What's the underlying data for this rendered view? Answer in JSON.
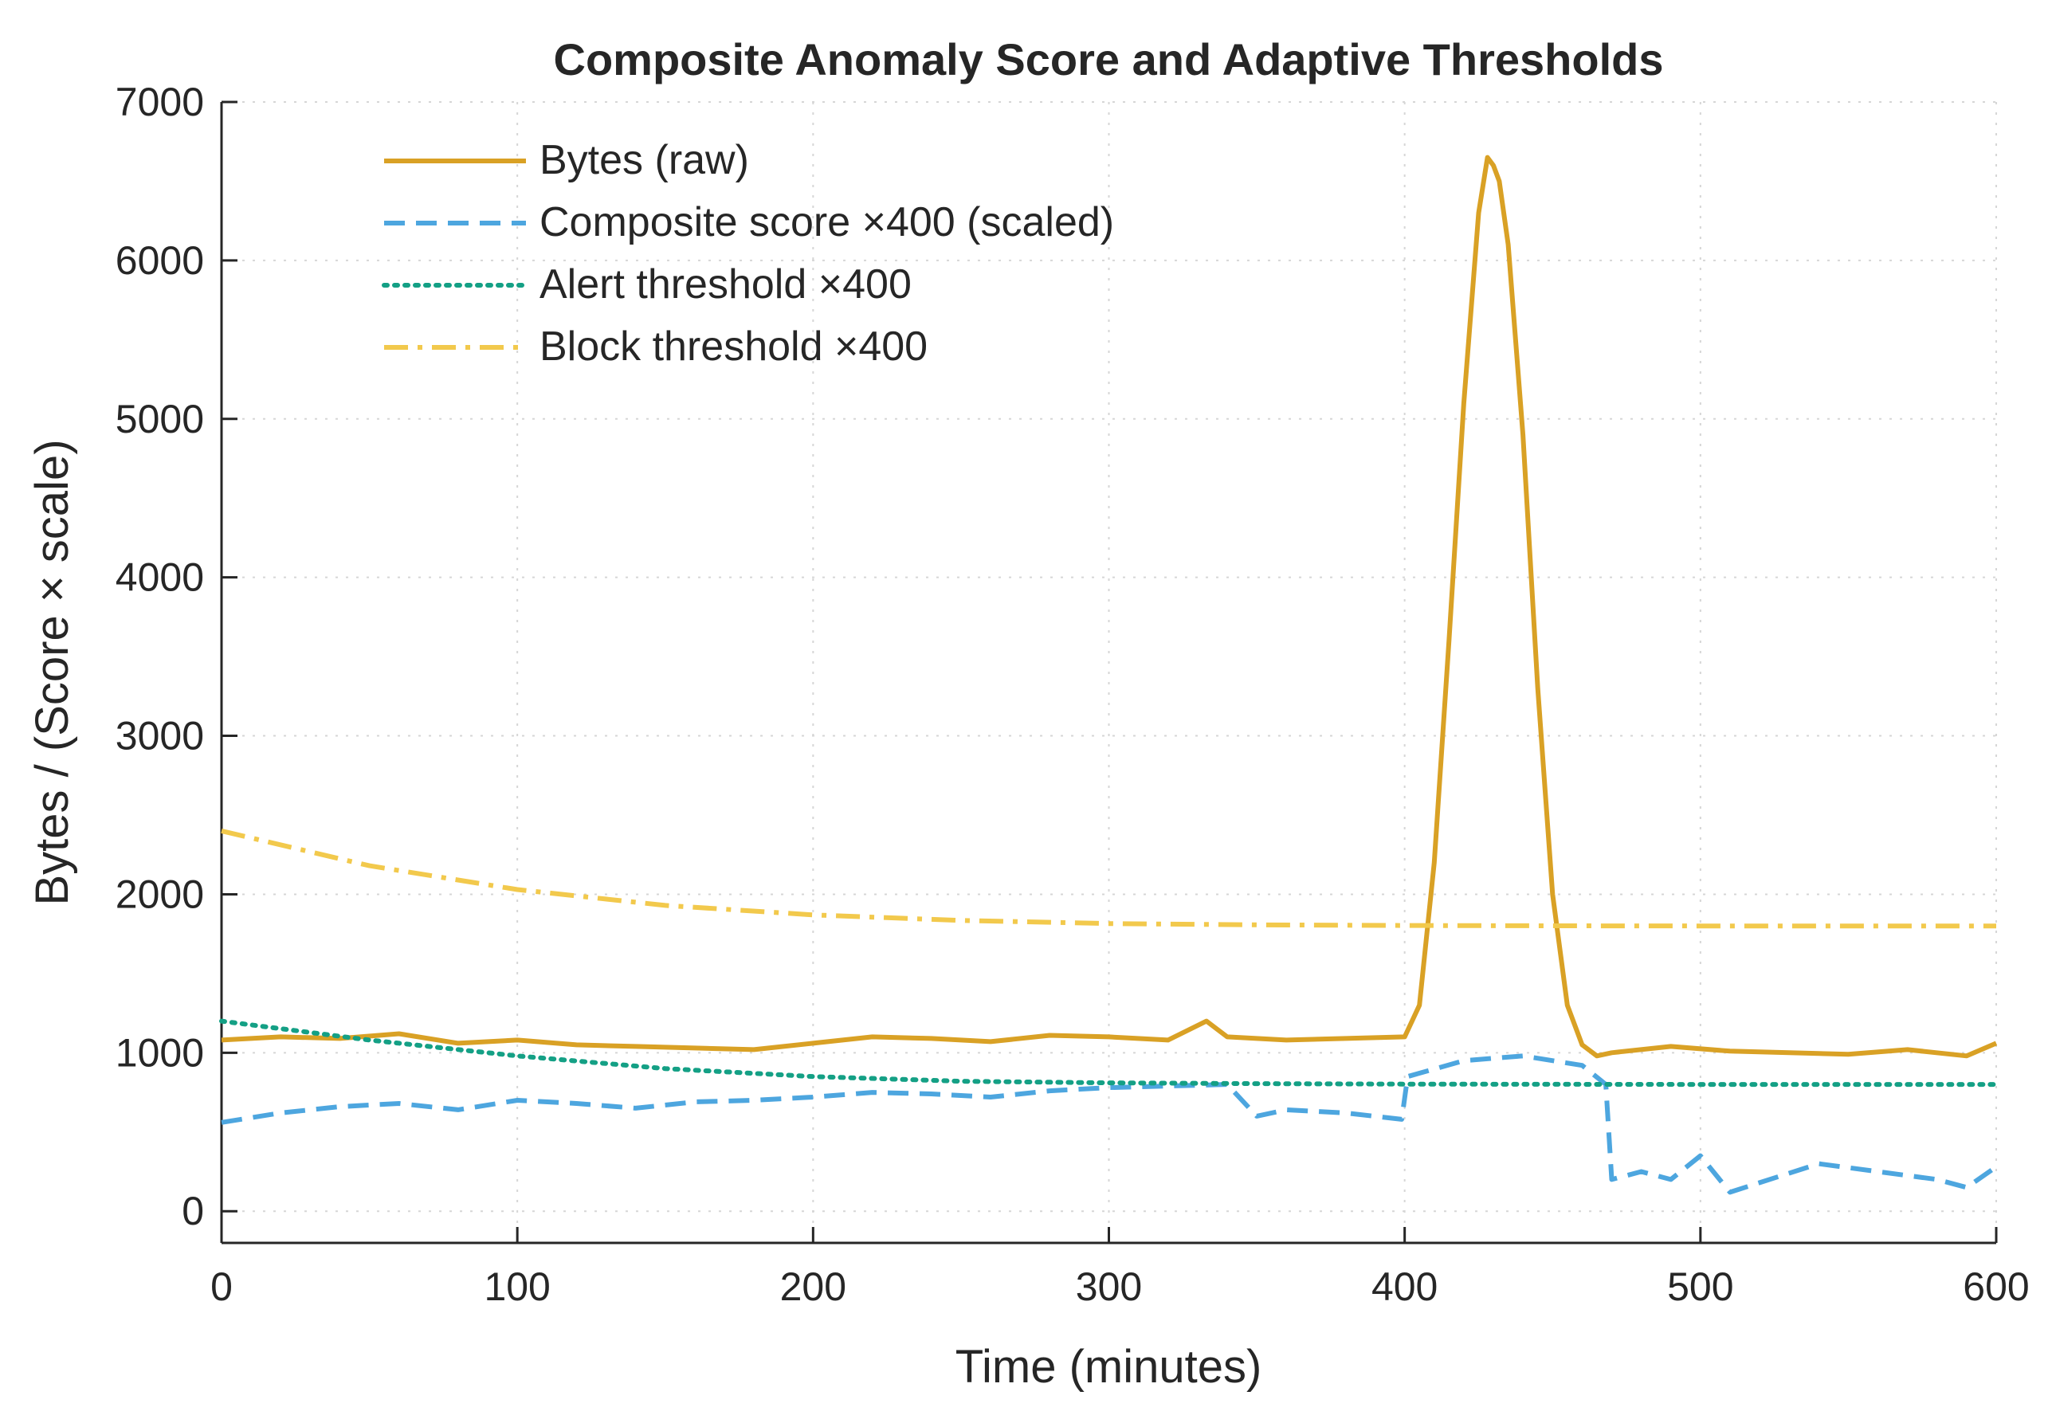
{
  "chart_data": {
    "type": "line",
    "title": "Composite Anomaly Score and Adaptive Thresholds",
    "xlabel": "Time (minutes)",
    "ylabel": "Bytes / (Score × scale)",
    "xlim": [
      0,
      600
    ],
    "ylim": [
      -200,
      7000
    ],
    "xticks": [
      0,
      100,
      200,
      300,
      400,
      500,
      600
    ],
    "yticks": [
      0,
      1000,
      2000,
      3000,
      4000,
      5000,
      6000,
      7000
    ],
    "grid": true,
    "legend_position": "top-left",
    "series": [
      {
        "name": "Bytes (raw)",
        "style": "solid",
        "color": "#D9A125",
        "x": [
          0,
          20,
          40,
          60,
          80,
          100,
          120,
          140,
          160,
          180,
          200,
          220,
          240,
          260,
          280,
          300,
          320,
          333,
          340,
          360,
          380,
          400,
          405,
          410,
          415,
          420,
          425,
          428,
          430,
          432,
          435,
          440,
          445,
          450,
          455,
          460,
          465,
          470,
          490,
          510,
          530,
          550,
          570,
          590,
          600
        ],
        "y": [
          1080,
          1100,
          1090,
          1120,
          1060,
          1080,
          1050,
          1040,
          1030,
          1020,
          1060,
          1100,
          1090,
          1070,
          1110,
          1100,
          1080,
          1200,
          1100,
          1080,
          1090,
          1100,
          1300,
          2200,
          3600,
          5100,
          6300,
          6650,
          6600,
          6500,
          6100,
          4900,
          3300,
          2000,
          1300,
          1050,
          980,
          1000,
          1040,
          1010,
          1000,
          990,
          1020,
          980,
          1060
        ]
      },
      {
        "name": "Composite score ×400 (scaled)",
        "style": "dashed",
        "color": "#4DA6DF",
        "x": [
          0,
          20,
          40,
          60,
          80,
          100,
          120,
          140,
          160,
          180,
          200,
          220,
          240,
          260,
          280,
          300,
          320,
          340,
          350,
          360,
          380,
          399,
          401,
          420,
          440,
          460,
          468,
          470,
          480,
          490,
          500,
          510,
          520,
          540,
          560,
          580,
          590,
          600
        ],
        "y": [
          560,
          620,
          660,
          680,
          640,
          700,
          680,
          650,
          690,
          700,
          720,
          750,
          740,
          720,
          760,
          780,
          790,
          800,
          600,
          640,
          620,
          580,
          850,
          950,
          980,
          920,
          800,
          200,
          250,
          200,
          350,
          120,
          180,
          300,
          250,
          200,
          150,
          280
        ]
      },
      {
        "name": "Alert threshold ×400",
        "style": "dotted",
        "color": "#14A085",
        "x": [
          0,
          50,
          100,
          150,
          200,
          250,
          300,
          350,
          400,
          450,
          500,
          550,
          600
        ],
        "y": [
          1200,
          1080,
          980,
          900,
          850,
          820,
          810,
          805,
          802,
          801,
          800,
          800,
          800
        ]
      },
      {
        "name": "Block threshold ×400",
        "style": "dashdot",
        "color": "#F2C94C",
        "x": [
          0,
          50,
          100,
          150,
          200,
          250,
          300,
          350,
          400,
          450,
          500,
          550,
          600
        ],
        "y": [
          2400,
          2180,
          2030,
          1930,
          1870,
          1835,
          1815,
          1807,
          1803,
          1801,
          1800,
          1800,
          1800
        ]
      }
    ]
  }
}
